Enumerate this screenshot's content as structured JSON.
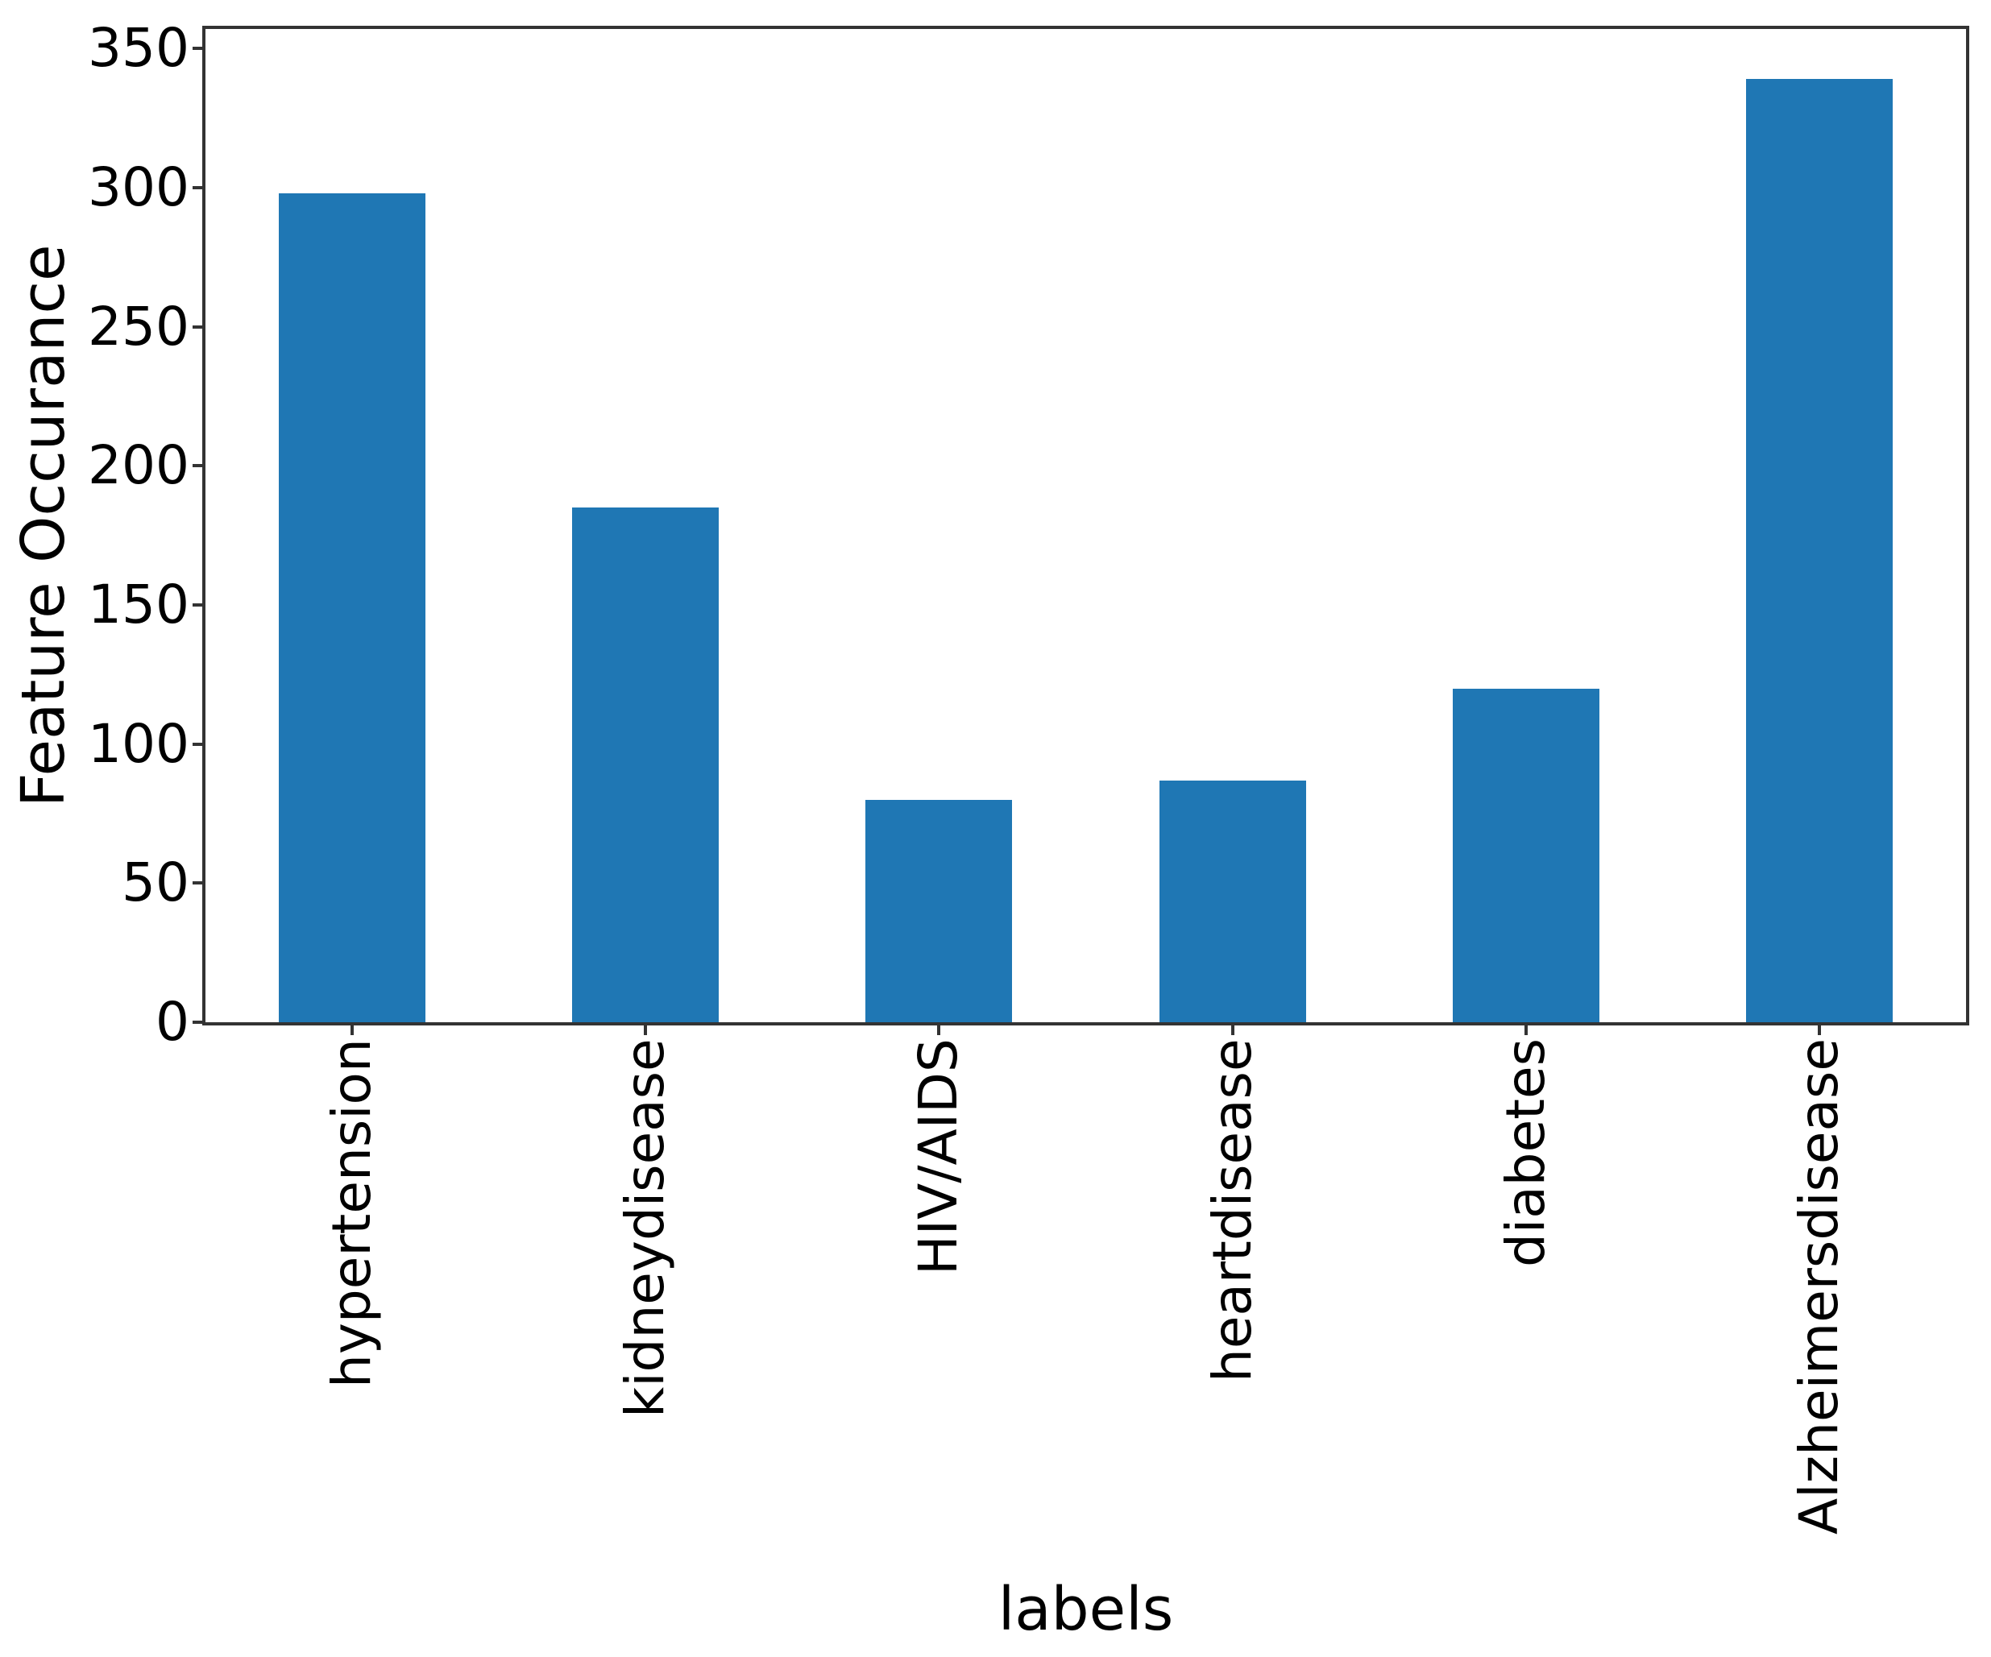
{
  "chart_data": {
    "type": "bar",
    "title": "",
    "xlabel": "labels",
    "ylabel": "Feature Occurance",
    "categories": [
      "hypertension",
      "kidneydisease",
      "HIV/AIDS",
      "heartdisease",
      "diabetes",
      "Alzheimersdisease"
    ],
    "values": [
      298,
      185,
      80,
      87,
      120,
      339
    ],
    "yticks": [
      0,
      50,
      100,
      150,
      200,
      250,
      300,
      350
    ],
    "ylim": [
      0,
      357
    ],
    "grid": false,
    "legend_position": "none",
    "bar_color": "#1f77b4",
    "spine_color": "#333333",
    "text_color": "#000000",
    "background": "#ffffff"
  }
}
